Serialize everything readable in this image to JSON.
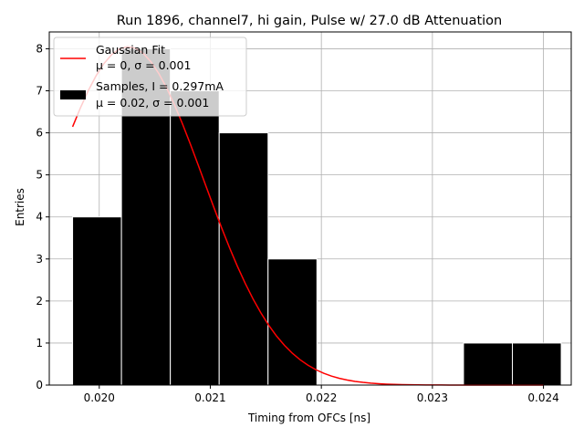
{
  "chart_data": {
    "type": "bar",
    "title": "Run 1896, channel7, hi gain, Pulse w/ 27.0 dB Attenuation",
    "xlabel": "Timing from OFCs [ns]",
    "ylabel": "Entries",
    "xlim": [
      0.01955,
      0.02425
    ],
    "ylim": [
      0,
      8.4
    ],
    "grid": true,
    "legend_position": "upper-left",
    "x_ticks": [
      "0.020",
      "0.021",
      "0.022",
      "0.023",
      "0.024"
    ],
    "x_tick_values": [
      0.02,
      0.021,
      0.022,
      0.023,
      0.024
    ],
    "y_ticks": [
      "0",
      "1",
      "2",
      "3",
      "4",
      "5",
      "6",
      "7",
      "8"
    ],
    "y_tick_values": [
      0,
      1,
      2,
      3,
      4,
      5,
      6,
      7,
      8
    ],
    "histogram": {
      "name": "Samples, I = 0.297mA",
      "stats": "μ = 0.02, σ = 0.001",
      "bin_edges": [
        0.01976,
        0.0202,
        0.02064,
        0.02108,
        0.02152,
        0.02196,
        0.0224,
        0.02284,
        0.02328,
        0.02372,
        0.02416
      ],
      "counts": [
        4,
        8,
        7,
        6,
        3,
        0,
        0,
        0,
        1,
        1
      ],
      "color": "#000000"
    },
    "fit": {
      "name": "Gaussian Fit",
      "stats": "μ = 0, σ = 0.001",
      "color": "#ff0000",
      "amplitude": 8.05,
      "mean": 0.02026,
      "sigma": 0.00068,
      "x_range": [
        0.01976,
        0.024
      ]
    }
  }
}
